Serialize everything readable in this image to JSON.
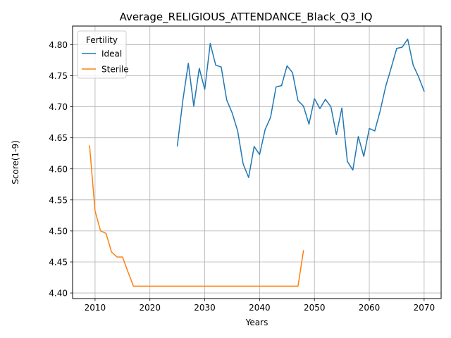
{
  "chart_data": {
    "type": "line",
    "title": "Average_RELIGIOUS_ATTENDANCE_Black_Q3_IQ",
    "xlabel": "Years",
    "ylabel": "Score(1-9)",
    "xlim": [
      2005.9,
      2073.1
    ],
    "ylim": [
      4.391,
      4.83
    ],
    "xticks": [
      2010,
      2020,
      2030,
      2040,
      2050,
      2060,
      2070
    ],
    "yticks": [
      4.4,
      4.45,
      4.5,
      4.55,
      4.6,
      4.65,
      4.7,
      4.75,
      4.8
    ],
    "xtick_labels": [
      "2010",
      "2020",
      "2030",
      "2040",
      "2050",
      "2060",
      "2070"
    ],
    "ytick_labels": [
      "4.40",
      "4.45",
      "4.50",
      "4.55",
      "4.60",
      "4.65",
      "4.70",
      "4.75",
      "4.80"
    ],
    "grid": true,
    "legend": {
      "title": "Fertility",
      "placement": "top-left"
    },
    "series": [
      {
        "name": "Ideal",
        "color": "#1f77b4",
        "x": [
          2025,
          2026,
          2027,
          2028,
          2029,
          2030,
          2031,
          2032,
          2033,
          2034,
          2035,
          2036,
          2037,
          2038,
          2039,
          2040,
          2041,
          2042,
          2043,
          2044,
          2045,
          2046,
          2047,
          2048,
          2049,
          2050,
          2051,
          2052,
          2053,
          2054,
          2055,
          2056,
          2057,
          2058,
          2059,
          2060,
          2061,
          2062,
          2063,
          2064,
          2065,
          2066,
          2067,
          2068,
          2069,
          2070
        ],
        "y": [
          4.637,
          4.71,
          4.77,
          4.701,
          4.762,
          4.728,
          4.802,
          4.767,
          4.764,
          4.711,
          4.69,
          4.661,
          4.608,
          4.586,
          4.636,
          4.623,
          4.663,
          4.683,
          4.732,
          4.734,
          4.766,
          4.755,
          4.71,
          4.701,
          4.672,
          4.713,
          4.697,
          4.712,
          4.7,
          4.655,
          4.698,
          4.612,
          4.598,
          4.652,
          4.62,
          4.665,
          4.661,
          4.694,
          4.733,
          4.763,
          4.794,
          4.796,
          4.809,
          4.767,
          4.748,
          4.725
        ]
      },
      {
        "name": "Sterile",
        "color": "#ff7f0e",
        "x": [
          2009,
          2010,
          2011,
          2012,
          2013,
          2014,
          2015,
          2016,
          2017,
          2018,
          2019,
          2020,
          2021,
          2022,
          2023,
          2024,
          2025,
          2026,
          2027,
          2028,
          2029,
          2030,
          2031,
          2032,
          2033,
          2034,
          2035,
          2036,
          2037,
          2038,
          2039,
          2040,
          2041,
          2042,
          2043,
          2044,
          2045,
          2046,
          2047,
          2048
        ],
        "y": [
          4.637,
          4.532,
          4.5,
          4.496,
          4.466,
          4.458,
          4.458,
          4.434,
          4.411,
          4.411,
          4.411,
          4.411,
          4.411,
          4.411,
          4.411,
          4.411,
          4.411,
          4.411,
          4.411,
          4.411,
          4.411,
          4.411,
          4.411,
          4.411,
          4.411,
          4.411,
          4.411,
          4.411,
          4.411,
          4.411,
          4.411,
          4.411,
          4.411,
          4.411,
          4.411,
          4.411,
          4.411,
          4.411,
          4.411,
          4.468
        ]
      }
    ]
  }
}
